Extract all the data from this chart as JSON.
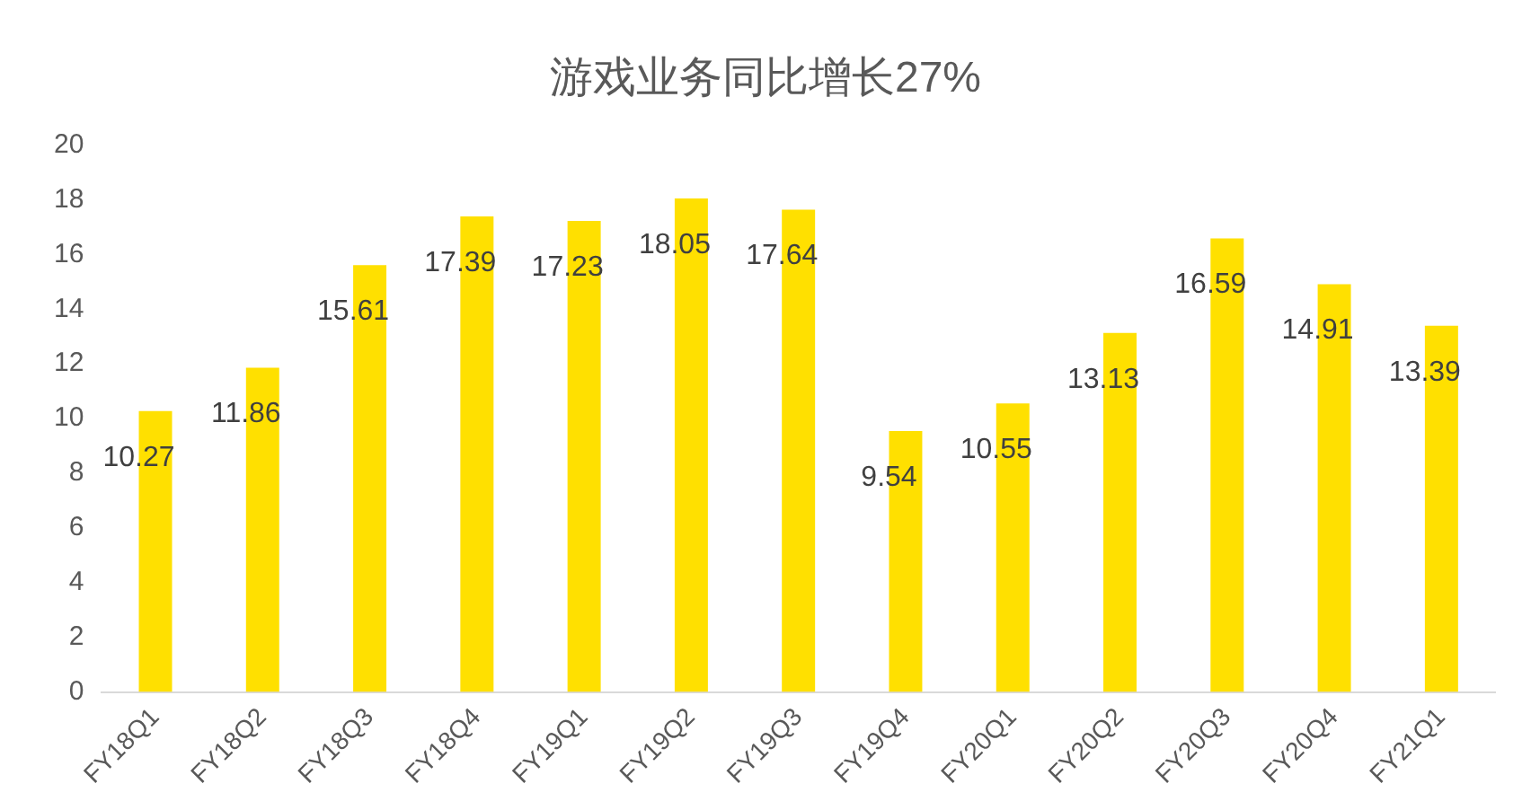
{
  "chart_data": {
    "type": "bar",
    "title": "游戏业务同比增长27%",
    "categories": [
      "FY18Q1",
      "FY18Q2",
      "FY18Q3",
      "FY18Q4",
      "FY19Q1",
      "FY19Q2",
      "FY19Q3",
      "FY19Q4",
      "FY20Q1",
      "FY20Q2",
      "FY20Q3",
      "FY20Q4",
      "FY21Q1"
    ],
    "values": [
      10.27,
      11.86,
      15.61,
      17.39,
      17.23,
      18.05,
      17.64,
      9.54,
      10.55,
      13.13,
      16.59,
      14.91,
      13.39
    ],
    "color": "#ffe000",
    "ylim": [
      0,
      20
    ],
    "yticks": [
      0,
      2,
      4,
      6,
      8,
      10,
      12,
      14,
      16,
      18,
      20
    ],
    "grid": false,
    "data_labels": true
  }
}
